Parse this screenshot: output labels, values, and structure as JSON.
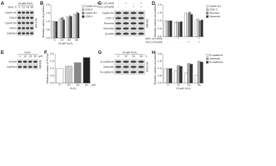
{
  "blots": {
    "A": {
      "label": "A",
      "title": "15 μM H₂O₂",
      "lanes_label": "Time, h",
      "lanes": [
        "0",
        "12",
        "24",
        "36"
      ],
      "rows": [
        "Cyclin A1",
        "CDK2",
        "Cyclin B1",
        "CDK1",
        "GAPDH"
      ],
      "cell": "HCT116"
    },
    "C": {
      "label": "C",
      "conditions": [
        {
          "name": "NAC (10 mM)",
          "signs": [
            "-",
            "+",
            "-",
            "+"
          ]
        },
        {
          "name": "H₂O₂ (20 μM)",
          "signs": [
            "-",
            "-",
            "+",
            "+"
          ]
        }
      ],
      "rows": [
        "Cyclin A1",
        "CDK 2",
        "Survivin",
        "Vimentin",
        "β-actin"
      ],
      "cell": "SW480"
    },
    "E": {
      "label": "E",
      "title": "H₂O₂",
      "lanes": [
        "0",
        "10",
        "15",
        "20"
      ],
      "unit": "μM",
      "rows": [
        "PCNA",
        "GAPDH"
      ],
      "cell": "SW480"
    },
    "G": {
      "label": "G",
      "title": "15 μM H₂O₂",
      "lanes": [
        "0",
        "12",
        "24",
        "36"
      ],
      "unit": "h",
      "rows": [
        "E-cadherin",
        "Vimentin",
        "N-cadherin"
      ],
      "cell": "HCT116"
    }
  },
  "chart_data": [
    {
      "type": "bar",
      "label": "B",
      "ylabel": "Relative values of proteins",
      "xlabel": "15 μM H₂O₂",
      "categories": [
        "0",
        "12",
        "24",
        "36"
      ],
      "ylim": [
        0,
        2
      ],
      "yticks": [
        {
          "value": 0,
          "label": "0.0"
        },
        0.5,
        {
          "value": 1,
          "label": "1.0"
        },
        1.5,
        {
          "value": 2,
          "label": "2.0"
        }
      ],
      "series": [
        {
          "name": "Cyclin A1",
          "color": "#ffffff",
          "values": [
            1.0,
            1.15,
            1.3,
            1.45
          ]
        },
        {
          "name": "CDK2",
          "color": "#cccccc",
          "values": [
            1.0,
            1.2,
            1.25,
            1.4
          ]
        },
        {
          "name": "Cyclin B1",
          "color": "#888888",
          "values": [
            1.0,
            1.25,
            1.35,
            1.55
          ]
        },
        {
          "name": "CDK1",
          "color": "#333333",
          "values": [
            1.0,
            1.1,
            1.3,
            1.5
          ]
        }
      ]
    },
    {
      "type": "bar",
      "label": "D",
      "ylabel": "Relative values of proteins",
      "categories": [
        null,
        null,
        null,
        null
      ],
      "conditions": [
        {
          "name": "NAC (10 mM)",
          "signs": [
            "-",
            "+",
            "-",
            "+"
          ]
        },
        {
          "name": "H₂O₂ (20 μM)",
          "signs": [
            "-",
            "-",
            "+",
            "+"
          ]
        }
      ],
      "ylim": [
        0,
        2
      ],
      "yticks": [
        {
          "value": 0,
          "label": "0.0"
        },
        0.5,
        {
          "value": 1,
          "label": "1.0"
        },
        1.5,
        {
          "value": 2,
          "label": "2.0"
        }
      ],
      "series": [
        {
          "name": "Cyclin A1",
          "color": "#ffffff",
          "values": [
            1.0,
            0.9,
            1.5,
            1.05
          ]
        },
        {
          "name": "CDK 2",
          "color": "#cccccc",
          "values": [
            1.0,
            0.95,
            1.45,
            1.1
          ]
        },
        {
          "name": "Survivin",
          "color": "#888888",
          "values": [
            1.0,
            0.9,
            1.55,
            1.0
          ]
        },
        {
          "name": "Vimentin",
          "color": "#333333",
          "values": [
            1.0,
            0.95,
            1.4,
            1.05
          ]
        }
      ]
    },
    {
      "type": "bar",
      "label": "F",
      "ylabel": "Relative values of PCNA",
      "xlabel": "H₂O₂",
      "unit": "μM",
      "categories": [
        "0",
        "10",
        "15",
        "20"
      ],
      "ylim": [
        0,
        2
      ],
      "yticks": [
        {
          "value": 0,
          "label": "0.0"
        },
        0.5,
        {
          "value": 1,
          "label": "1.0"
        },
        1.5,
        {
          "value": 2,
          "label": "2.0"
        }
      ],
      "series": [
        {
          "colors": [
            "#ffffff",
            "#cccccc",
            "#888888",
            "#222222"
          ],
          "values": [
            1.0,
            1.15,
            1.4,
            1.75
          ]
        }
      ]
    },
    {
      "type": "bar",
      "label": "H",
      "ylabel": "Relative values of proteins",
      "xlabel": "15 μM H₂O₂",
      "categories": [
        "0",
        "12",
        "24",
        "36"
      ],
      "ylim": [
        0,
        2
      ],
      "yticks": [
        {
          "value": 0,
          "label": "0.0"
        },
        0.5,
        {
          "value": 1,
          "label": "1.0"
        },
        1.5,
        {
          "value": 2,
          "label": "2.0"
        }
      ],
      "series": [
        {
          "name": "E-cadherin",
          "color": "#ffffff",
          "values": [
            1.0,
            0.85,
            0.7,
            0.55
          ]
        },
        {
          "name": "Vimentin",
          "color": "#aaaaaa",
          "values": [
            1.0,
            1.2,
            1.35,
            1.5
          ]
        },
        {
          "name": "N-cadherin",
          "color": "#333333",
          "values": [
            1.0,
            1.15,
            1.3,
            1.45
          ]
        }
      ]
    }
  ]
}
